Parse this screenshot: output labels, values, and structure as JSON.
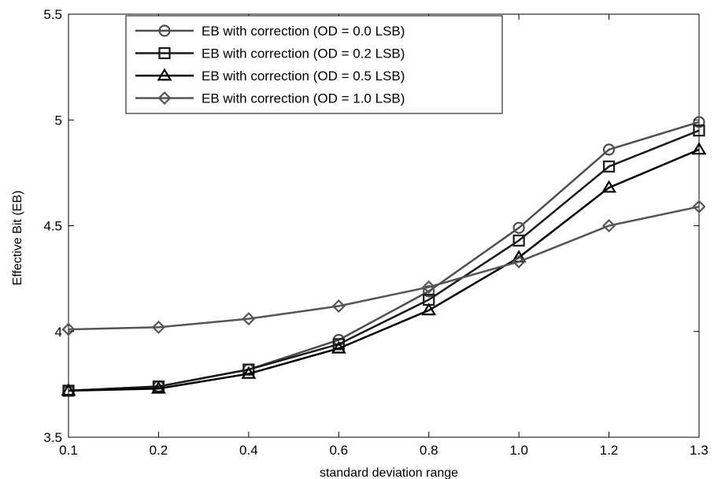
{
  "chart_data": {
    "type": "line",
    "title": "",
    "xlabel": "standard deviation range",
    "ylabel": "Effective Bit (EB)",
    "categories": [
      "0.1",
      "0.2",
      "0.4",
      "0.6",
      "0.8",
      "1.0",
      "1.2",
      "1.3"
    ],
    "ylim": [
      3.5,
      5.5
    ],
    "yticks": [
      "3.5",
      "4",
      "4.5",
      "5",
      "5.5"
    ],
    "grid": false,
    "legend_position": "top-left",
    "series": [
      {
        "name": "EB with correction (OD = 0.0 LSB)",
        "marker": "circle",
        "color": "#4d4d4d",
        "values": [
          3.72,
          3.74,
          3.82,
          3.96,
          4.19,
          4.49,
          4.86,
          4.99
        ]
      },
      {
        "name": "EB with correction (OD = 0.2 LSB)",
        "marker": "square",
        "color": "#1a1a1a",
        "values": [
          3.72,
          3.74,
          3.82,
          3.94,
          4.15,
          4.43,
          4.78,
          4.95
        ]
      },
      {
        "name": "EB with correction (OD = 0.5 LSB)",
        "marker": "triangle",
        "color": "#000000",
        "values": [
          3.72,
          3.73,
          3.8,
          3.92,
          4.1,
          4.35,
          4.68,
          4.86
        ]
      },
      {
        "name": "EB with correction (OD = 1.0 LSB)",
        "marker": "diamond",
        "color": "#555555",
        "values": [
          4.01,
          4.02,
          4.06,
          4.12,
          4.21,
          4.33,
          4.5,
          4.59
        ]
      }
    ]
  }
}
